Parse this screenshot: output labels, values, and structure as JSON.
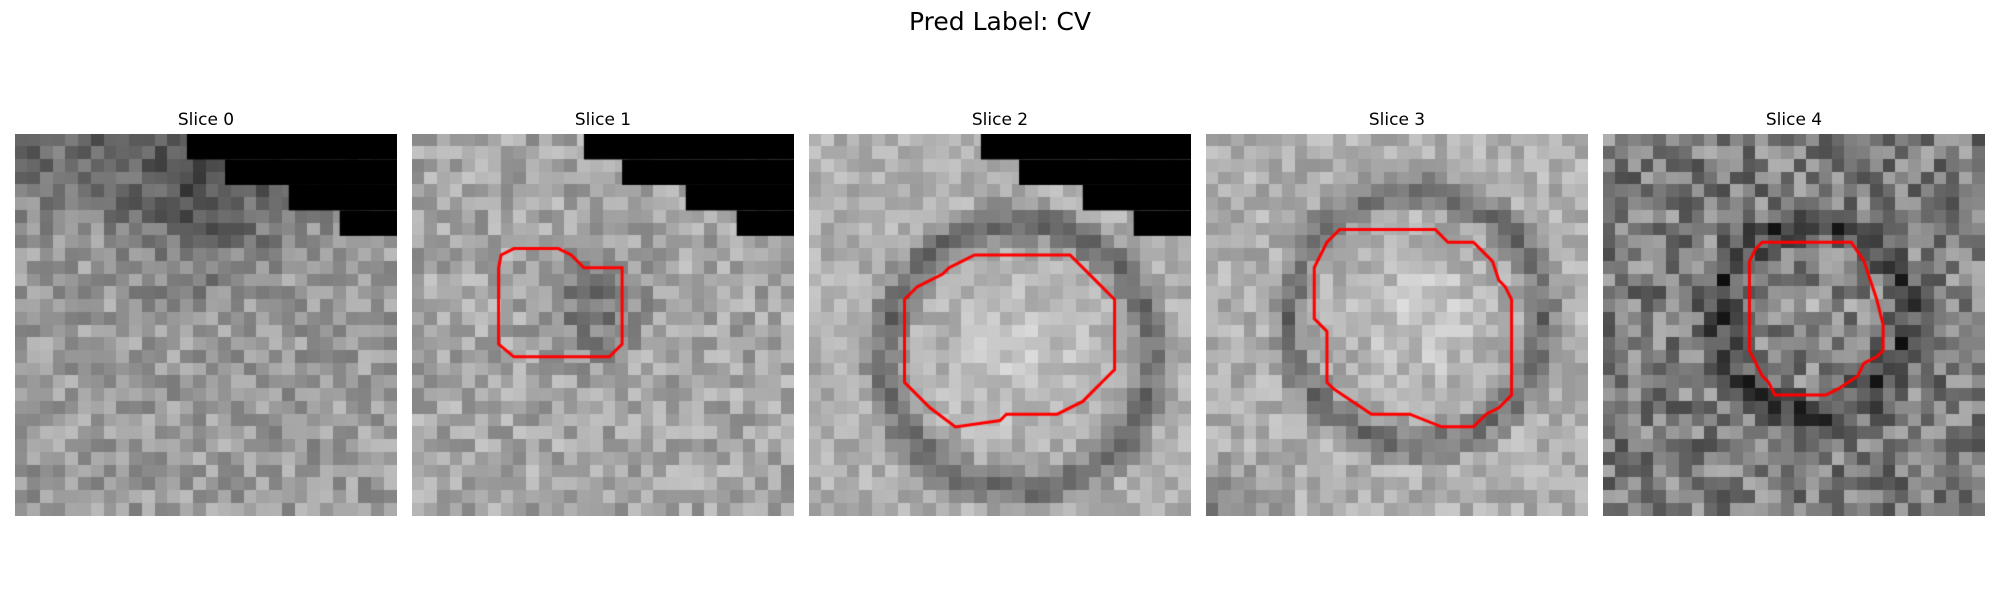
{
  "figure": {
    "title": "Pred Label: CV"
  },
  "panels": [
    {
      "title": "Slice 0",
      "has_contour": false,
      "contour_color": "#ff0000",
      "background": "#ffffff"
    },
    {
      "title": "Slice 1",
      "has_contour": true,
      "contour_color": "#ff0000",
      "background": "#ffffff"
    },
    {
      "title": "Slice 2",
      "has_contour": true,
      "contour_color": "#ff0000",
      "background": "#ffffff"
    },
    {
      "title": "Slice 3",
      "has_contour": true,
      "contour_color": "#ff0000",
      "background": "#ffffff"
    },
    {
      "title": "Slice 4",
      "has_contour": true,
      "contour_color": "#ff0000",
      "background": "#ffffff"
    }
  ],
  "colors": {
    "background": "#ffffff",
    "text": "#000000",
    "contour": "#ff0000",
    "mask": "#000000"
  }
}
